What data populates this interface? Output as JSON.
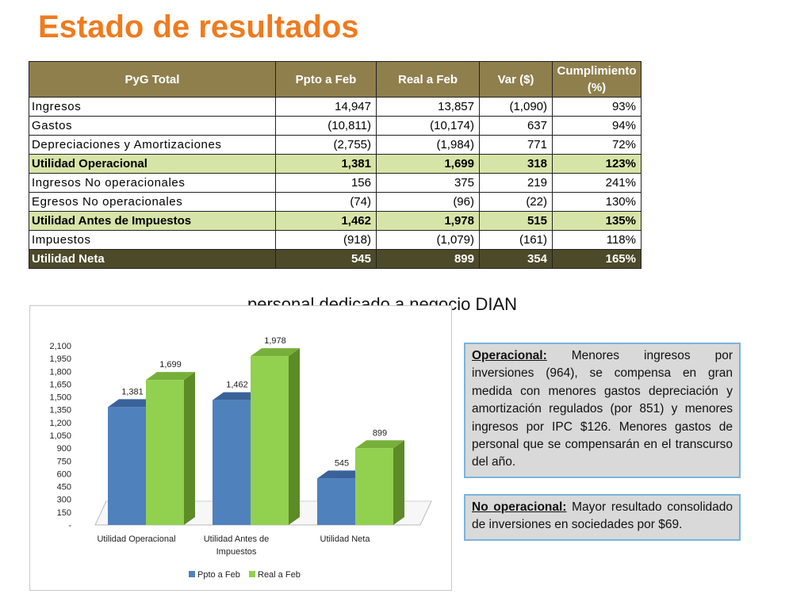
{
  "title": "Estado de resultados",
  "table": {
    "headers": [
      "PyG Total",
      "Ppto a Feb",
      "Real a Feb",
      "Var ($)",
      "Cumplimiento (%)"
    ],
    "rows": [
      {
        "label": "Ingresos",
        "ppto": "14,947",
        "real": "13,857",
        "var": "(1,090)",
        "cump": "93%",
        "style": "normal"
      },
      {
        "label": "Gastos",
        "ppto": "(10,811)",
        "real": "(10,174)",
        "var": "637",
        "cump": "94%",
        "style": "normal"
      },
      {
        "label": "Depreciaciones y Amortizaciones",
        "ppto": "(2,755)",
        "real": "(1,984)",
        "var": "771",
        "cump": "72%",
        "style": "normal"
      },
      {
        "label": "Utilidad Operacional",
        "ppto": "1,381",
        "real": "1,699",
        "var": "318",
        "cump": "123%",
        "style": "highlight"
      },
      {
        "label": "Ingresos No operacionales",
        "ppto": "156",
        "real": "375",
        "var": "219",
        "cump": "241%",
        "style": "normal"
      },
      {
        "label": "Egresos No operacionales",
        "ppto": "(74)",
        "real": "(96)",
        "var": "(22)",
        "cump": "130%",
        "style": "normal"
      },
      {
        "label": "Utilidad Antes de Impuestos",
        "ppto": "1,462",
        "real": "1,978",
        "var": "515",
        "cump": "135%",
        "style": "highlight"
      },
      {
        "label": "Impuestos",
        "ppto": "(918)",
        "real": "(1,079)",
        "var": "(161)",
        "cump": "118%",
        "style": "normal"
      },
      {
        "label": "Utilidad Neta",
        "ppto": "545",
        "real": "899",
        "var": "354",
        "cump": "165%",
        "style": "total"
      }
    ]
  },
  "subtitle": "personal dedicado a negocio DIAN",
  "chart_data": {
    "type": "bar",
    "categories": [
      "Utilidad Operacional",
      "Utilidad Antes de Impuestos",
      "Utilidad Neta"
    ],
    "series": [
      {
        "name": "Ppto a Feb",
        "values": [
          1381,
          1462,
          545
        ],
        "labels": [
          "1,381",
          "1,462",
          "545"
        ],
        "color": "#4f81bd",
        "side": "#3a629a",
        "top": "#3a629a"
      },
      {
        "name": "Real a Feb",
        "values": [
          1699,
          1978,
          899
        ],
        "labels": [
          "1,699",
          "1,978",
          "899"
        ],
        "color": "#92d050",
        "side": "#5c8b28",
        "top": "#76b03a"
      }
    ],
    "yticks": [
      "-",
      "150",
      "300",
      "450",
      "600",
      "750",
      "900",
      "1,050",
      "1,200",
      "1,350",
      "1,500",
      "1,650",
      "1,800",
      "1,950",
      "2,100"
    ],
    "ylim": [
      0,
      2100
    ],
    "legend_position": "bottom",
    "grid": false,
    "style": "3d-column"
  },
  "notes": [
    {
      "heading": "Operacional:",
      "text": " Menores ingresos por inversiones (964), se compensa en gran medida con menores gastos depreciación y amortización regulados (por 851) y menores ingresos por IPC $126. Menores gastos de personal que se compensarán en el transcurso del año."
    },
    {
      "heading": "No operacional:",
      "text": " Mayor resultado consolidado de inversiones en sociedades por $69."
    }
  ]
}
